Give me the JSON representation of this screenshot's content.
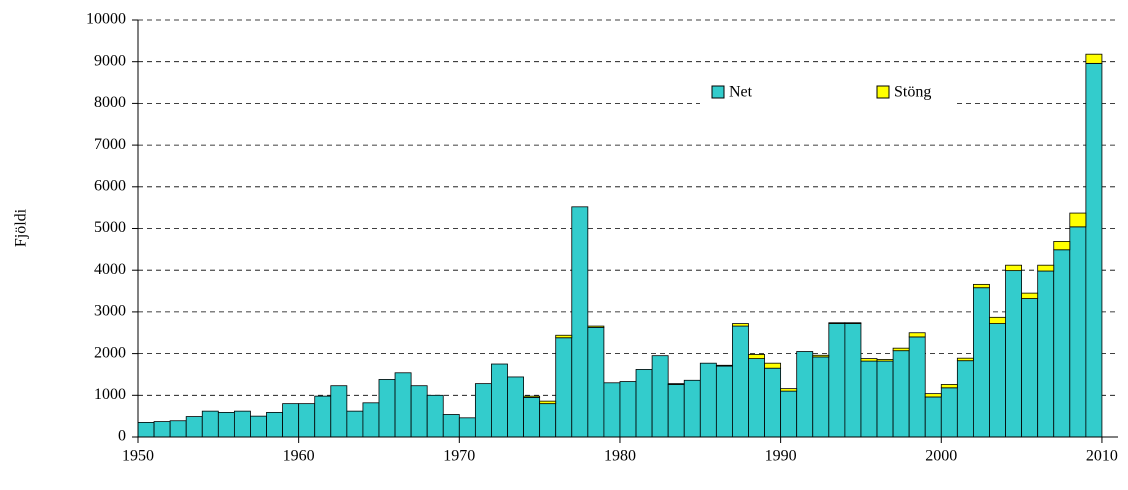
{
  "chart_data": {
    "type": "bar",
    "stacked": true,
    "y_label": "Fjöldi",
    "x": [
      1951,
      1952,
      1953,
      1954,
      1955,
      1956,
      1957,
      1958,
      1959,
      1960,
      1961,
      1962,
      1963,
      1964,
      1965,
      1966,
      1967,
      1968,
      1969,
      1970,
      1971,
      1972,
      1973,
      1974,
      1975,
      1976,
      1977,
      1978,
      1979,
      1980,
      1981,
      1982,
      1983,
      1984,
      1985,
      1986,
      1987,
      1988,
      1989,
      1990,
      1991,
      1992,
      1993,
      1994,
      1995,
      1996,
      1997,
      1998,
      1999,
      2000,
      2001,
      2002,
      2003,
      2004,
      2005,
      2006,
      2007,
      2008,
      2009,
      2010
    ],
    "series": [
      {
        "name": "Net",
        "color": "#33cccc",
        "values": [
          350,
          370,
          390,
          490,
          620,
          590,
          620,
          500,
          590,
          800,
          800,
          980,
          1230,
          620,
          820,
          1380,
          1540,
          1230,
          1000,
          540,
          460,
          1280,
          1750,
          1440,
          950,
          800,
          2380,
          5520,
          2630,
          1300,
          1330,
          1620,
          1950,
          1260,
          1360,
          1770,
          1700,
          2660,
          1880,
          1650,
          1100,
          2050,
          1920,
          2720,
          2720,
          1820,
          1820,
          2070,
          2400,
          960,
          1180,
          1830,
          3580,
          2720,
          3990,
          3320,
          3980,
          4490,
          5040,
          8960
        ]
      },
      {
        "name": "Stöng",
        "color": "#ffff00",
        "values": [
          0,
          0,
          0,
          0,
          0,
          0,
          0,
          0,
          0,
          0,
          0,
          0,
          0,
          0,
          0,
          0,
          0,
          0,
          0,
          0,
          0,
          0,
          0,
          0,
          30,
          60,
          60,
          0,
          30,
          0,
          0,
          0,
          0,
          20,
          0,
          0,
          20,
          60,
          100,
          120,
          60,
          0,
          40,
          20,
          20,
          60,
          40,
          60,
          100,
          80,
          80,
          60,
          80,
          150,
          130,
          130,
          140,
          200,
          330,
          220
        ]
      }
    ],
    "xlim": [
      1950,
      2011
    ],
    "xticks": [
      1950,
      1960,
      1970,
      1980,
      1990,
      2000,
      2010
    ],
    "ylim": [
      0,
      10000
    ],
    "yticks": [
      0,
      1000,
      2000,
      3000,
      4000,
      5000,
      6000,
      7000,
      8000,
      9000,
      10000
    ],
    "grid": true,
    "legend": "top-right"
  }
}
